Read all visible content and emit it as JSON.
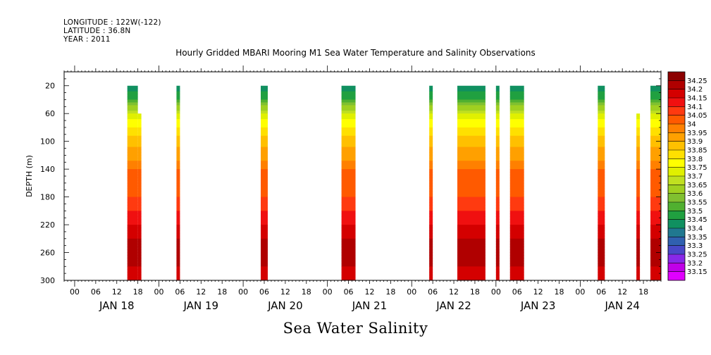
{
  "header": {
    "longitude": "LONGITUDE : 122W(-122)",
    "latitude": "LATITUDE : 36.8N",
    "year": "YEAR : 2011"
  },
  "chart_data": {
    "type": "heatmap",
    "title": "Hourly Gridded MBARI Mooring M1 Sea Water Temperature and Salinity Observations",
    "xlabel": "Sea Water Salinity",
    "ylabel": "DEPTH (m)",
    "xlim": [
      "2011-01-17T21:00",
      "2011-01-24T23:00"
    ],
    "ylim": [
      300,
      0
    ],
    "y_ticks": [
      20,
      60,
      100,
      140,
      180,
      220,
      260,
      300
    ],
    "x_hour_ticks": [
      "00",
      "06",
      "12",
      "18",
      "00",
      "06",
      "12",
      "18",
      "00",
      "06",
      "12",
      "18",
      "00",
      "06",
      "12",
      "18",
      "00",
      "06",
      "12",
      "18",
      "00",
      "06",
      "12",
      "18",
      "00",
      "06",
      "12",
      "18"
    ],
    "x_day_labels": [
      "JAN 18",
      "JAN 19",
      "JAN 20",
      "JAN 21",
      "JAN 22",
      "JAN 23",
      "JAN 24"
    ],
    "colorbar": {
      "levels": [
        "34.25",
        "34.2",
        "34.15",
        "34.1",
        "34.05",
        "34",
        "33.95",
        "33.9",
        "33.85",
        "33.8",
        "33.75",
        "33.7",
        "33.65",
        "33.6",
        "33.55",
        "33.5",
        "33.45",
        "33.4",
        "33.35",
        "33.3",
        "33.25",
        "33.2",
        "33.15"
      ],
      "colors": [
        "#8c0000",
        "#b00000",
        "#d40000",
        "#f01010",
        "#ff3a10",
        "#ff5a00",
        "#ff8000",
        "#ffa000",
        "#ffc000",
        "#ffe000",
        "#ffff00",
        "#e0f000",
        "#c0e020",
        "#a0d020",
        "#80c030",
        "#50b030",
        "#20a040",
        "#109060",
        "#207890",
        "#3060b0",
        "#4848c8",
        "#8828e8",
        "#c000e8",
        "#e000ff"
      ]
    },
    "data_segments": [
      {
        "start": "2011-01-18T15:00",
        "end": "2011-01-18T18:00",
        "top_depth": 20,
        "bottom_depth": 300
      },
      {
        "start": "2011-01-18T18:00",
        "end": "2011-01-18T19:00",
        "top_depth": 60,
        "bottom_depth": 300
      },
      {
        "start": "2011-01-19T05:00",
        "end": "2011-01-19T06:00",
        "top_depth": 20,
        "bottom_depth": 300
      },
      {
        "start": "2011-01-20T05:00",
        "end": "2011-01-20T07:00",
        "top_depth": 20,
        "bottom_depth": 300
      },
      {
        "start": "2011-01-21T04:00",
        "end": "2011-01-21T08:00",
        "top_depth": 20,
        "bottom_depth": 300
      },
      {
        "start": "2011-01-22T05:00",
        "end": "2011-01-22T06:00",
        "top_depth": 20,
        "bottom_depth": 300
      },
      {
        "start": "2011-01-22T13:00",
        "end": "2011-01-22T21:00",
        "top_depth": 20,
        "bottom_depth": 300
      },
      {
        "start": "2011-01-23T00:00",
        "end": "2011-01-23T01:00",
        "top_depth": 20,
        "bottom_depth": 300
      },
      {
        "start": "2011-01-23T04:00",
        "end": "2011-01-23T08:00",
        "top_depth": 20,
        "bottom_depth": 300
      },
      {
        "start": "2011-01-24T05:00",
        "end": "2011-01-24T07:00",
        "top_depth": 20,
        "bottom_depth": 300
      },
      {
        "start": "2011-01-24T16:00",
        "end": "2011-01-24T17:00",
        "top_depth": 60,
        "bottom_depth": 300
      },
      {
        "start": "2011-01-24T20:00",
        "end": "2011-01-24T23:00",
        "top_depth": 20,
        "bottom_depth": 300
      }
    ],
    "salinity_profile": [
      {
        "depth": 20,
        "salinity": 33.4
      },
      {
        "depth": 40,
        "salinity": 33.5
      },
      {
        "depth": 60,
        "salinity": 33.7
      },
      {
        "depth": 80,
        "salinity": 33.8
      },
      {
        "depth": 100,
        "salinity": 33.88
      },
      {
        "depth": 120,
        "salinity": 33.92
      },
      {
        "depth": 140,
        "salinity": 34.0
      },
      {
        "depth": 180,
        "salinity": 34.05
      },
      {
        "depth": 200,
        "salinity": 34.1
      },
      {
        "depth": 220,
        "salinity": 34.15
      },
      {
        "depth": 240,
        "salinity": 34.2
      },
      {
        "depth": 260,
        "salinity": 34.25
      },
      {
        "depth": 280,
        "salinity": 34.2
      },
      {
        "depth": 300,
        "salinity": 34.15
      }
    ]
  }
}
